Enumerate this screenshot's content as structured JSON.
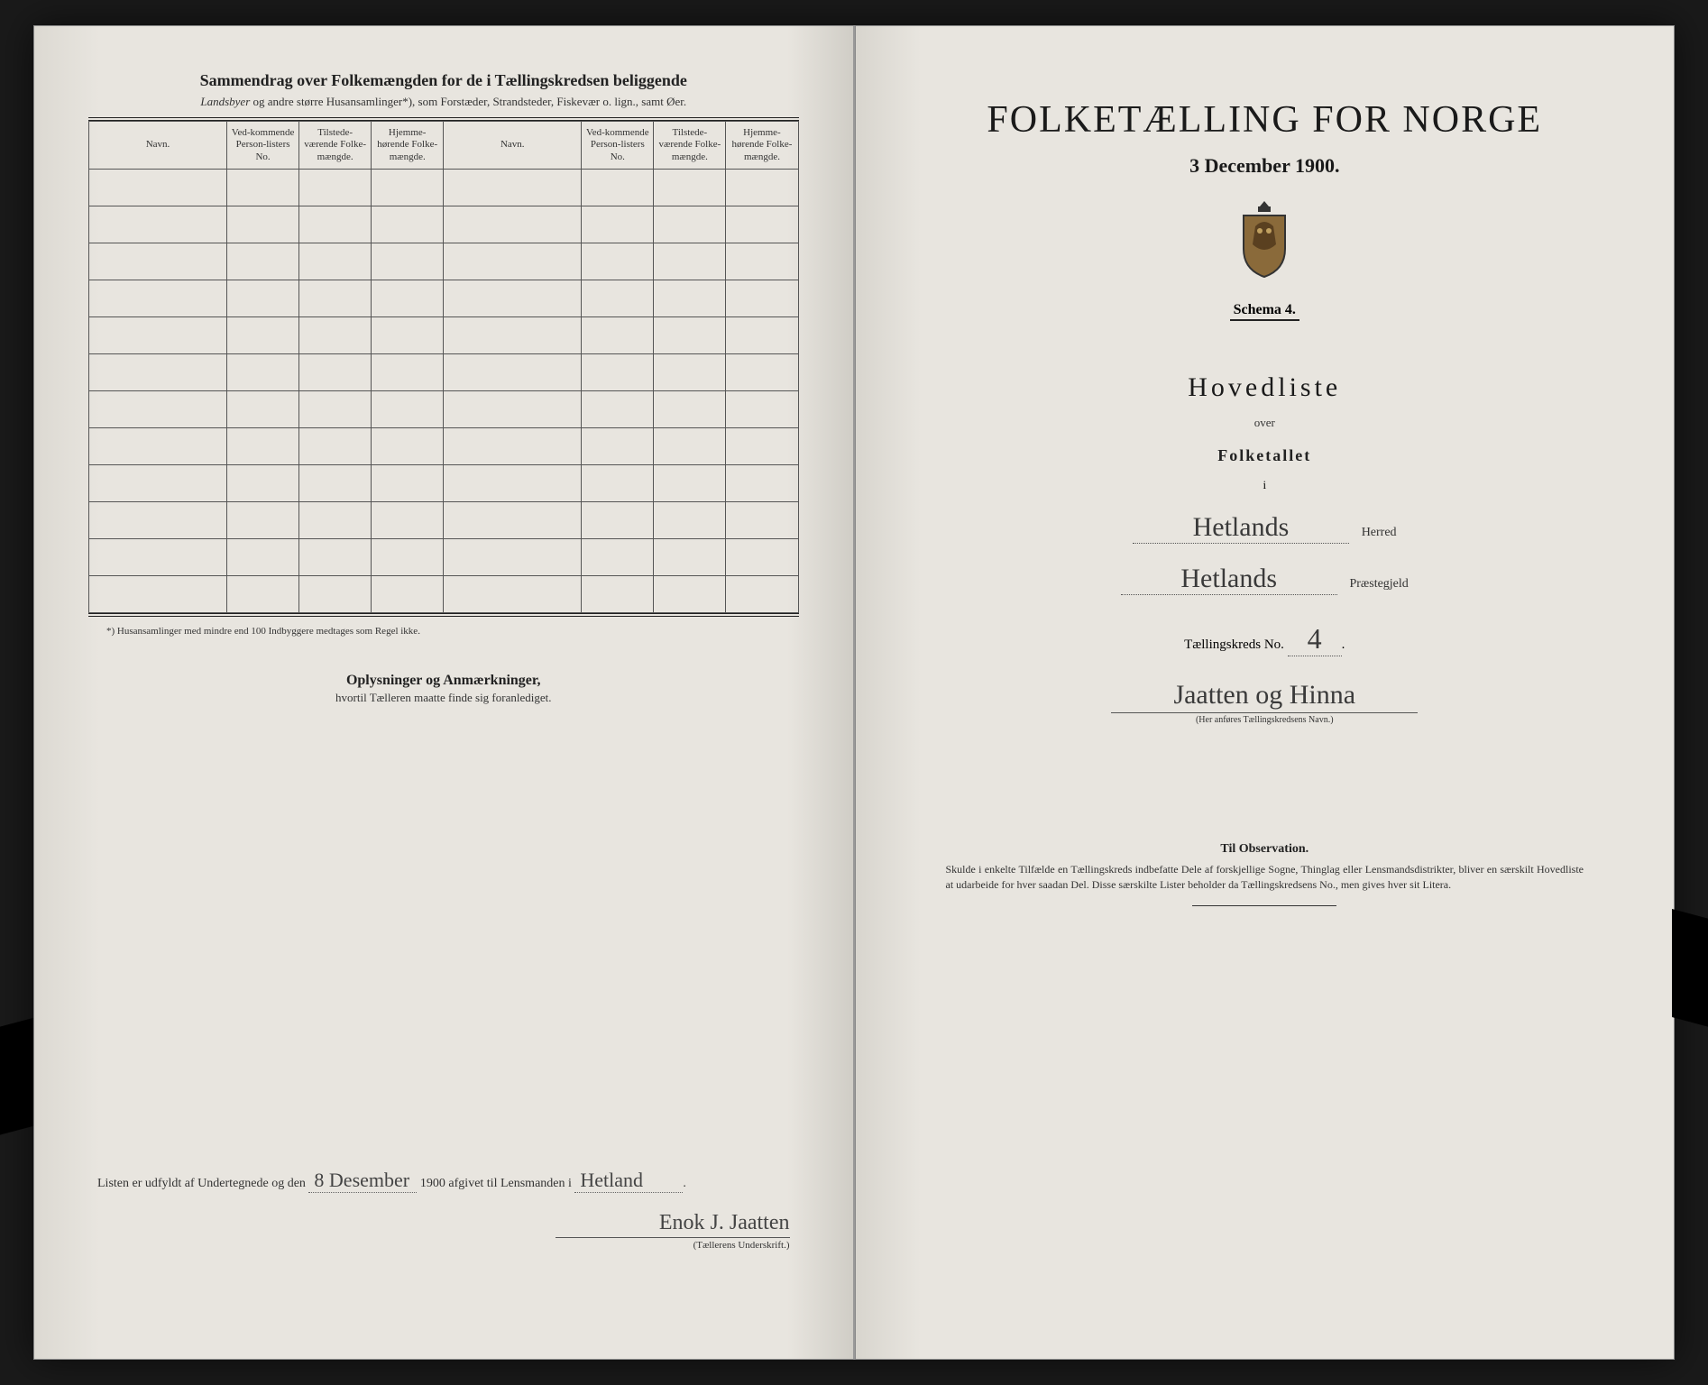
{
  "left": {
    "title": "Sammendrag over Folkemængden for de i Tællingskredsen beliggende",
    "subtitle_italic": "Landsbyer",
    "subtitle_rest": " og andre større Husansamlinger*), som Forstæder, Strandsteder, Fiskevær o. lign., samt Øer.",
    "columns": {
      "navn": "Navn.",
      "vedk": "Ved-kommende Person-listers No.",
      "tilst": "Tilstede-værende Folke-mængde.",
      "hjemme": "Hjemme-hørende Folke-mængde."
    },
    "row_count": 12,
    "footnote": "*) Husansamlinger med mindre end 100 Indbyggere medtages som Regel ikke.",
    "mid_heading": "Oplysninger og Anmærkninger,",
    "mid_sub": "hvortil Tælleren maatte finde sig foranlediget.",
    "sign_line_prefix": "Listen er udfyldt af Undertegnede og den",
    "sign_date": "8 Desember",
    "sign_year": "1900",
    "sign_mid": " afgivet til Lensmanden i",
    "sign_place": "Hetland",
    "signature": "Enok J. Jaatten",
    "sign_label": "(Tællerens Underskrift.)"
  },
  "right": {
    "title": "FOLKETÆLLING FOR NORGE",
    "date": "3 December 1900.",
    "schema": "Schema 4.",
    "hovedliste": "Hovedliste",
    "over": "over",
    "folketallet": "Folketallet",
    "i": "i",
    "herred_value": "Hetlands",
    "herred_label": "Herred",
    "prestegjeld_value": "Hetlands",
    "prestegjeld_label": "Præstegjeld",
    "kreds_label": "Tællingskreds No.",
    "kreds_no": "4",
    "kreds_name": "Jaatten og Hinna",
    "kreds_hint": "(Her anføres Tællingskredsens Navn.)",
    "obs_title": "Til Observation.",
    "obs_text": "Skulde i enkelte Tilfælde en Tællingskreds indbefatte Dele af forskjellige Sogne, Thinglag eller Lensmandsdistrikter, bliver en særskilt Hovedliste at udarbeide for hver saadan Del. Disse særskilte Lister beholder da Tællingskredsens No., men gives hver sit Litera."
  },
  "colors": {
    "paper": "#e8e5df",
    "ink": "#1a1a1a",
    "rule": "#555555",
    "background": "#1a1a1a"
  }
}
